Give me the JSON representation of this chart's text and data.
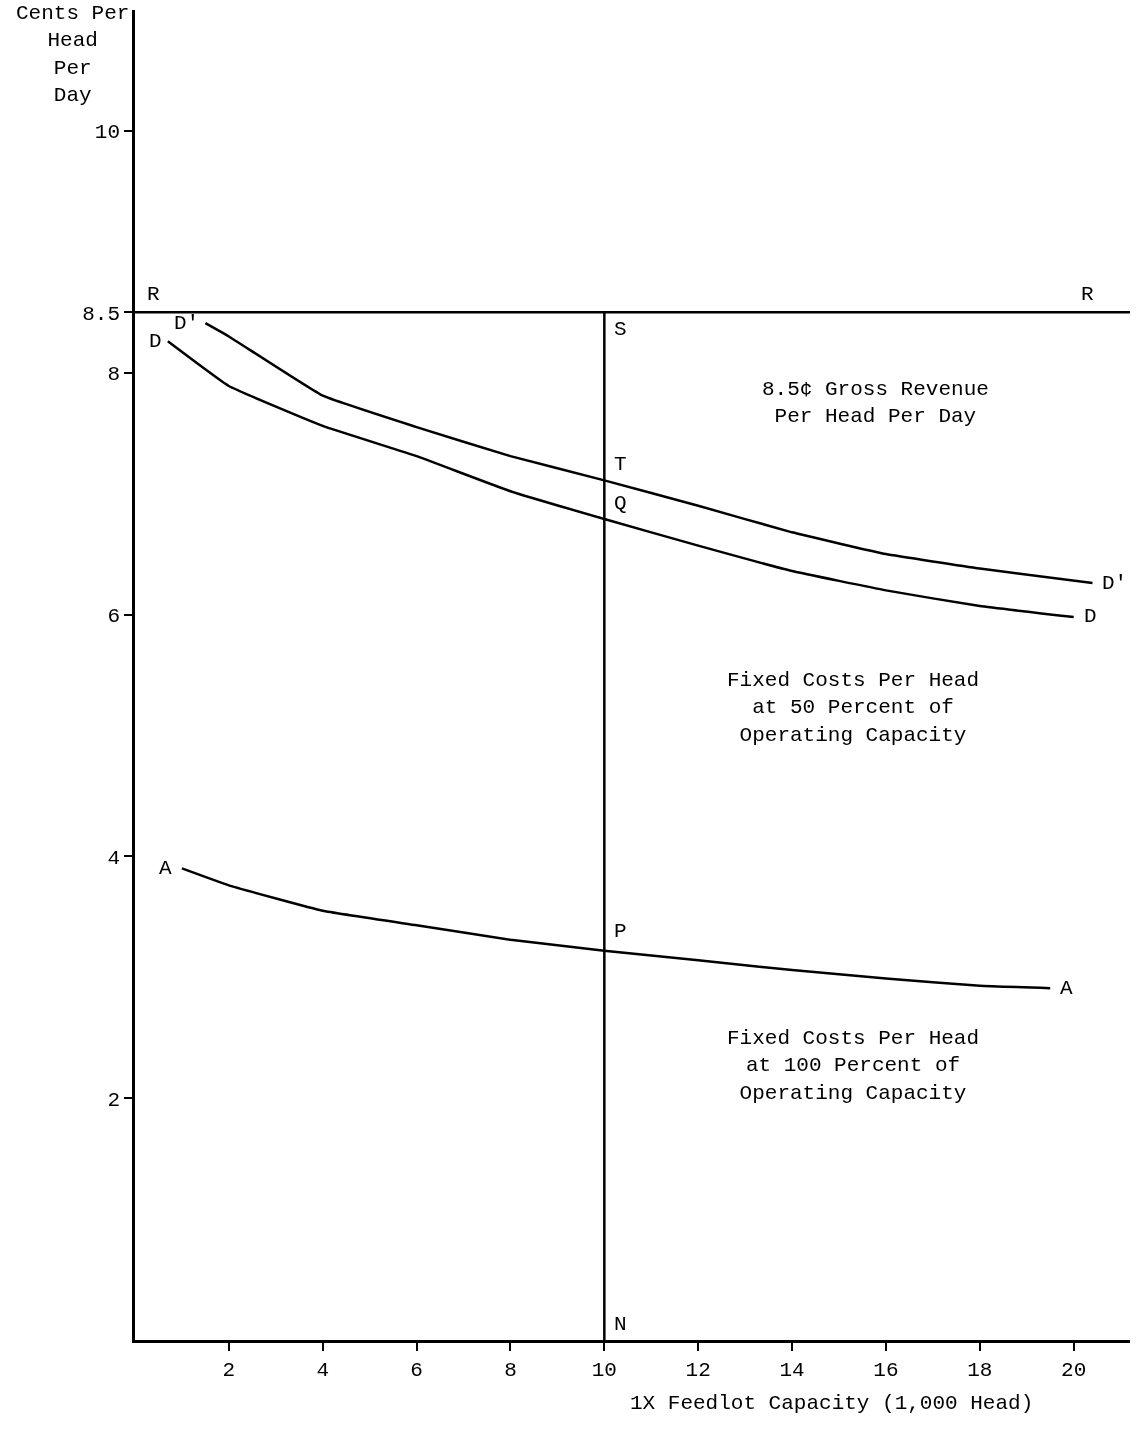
{
  "chart_data": {
    "type": "line",
    "ylabel": "Cents Per\nHead\nPer\nDay",
    "xlabel": "1X Feedlot Capacity (1,000 Head)",
    "xlim": [
      0,
      21.2
    ],
    "ylim": [
      0,
      11
    ],
    "xticks": [
      2,
      4,
      6,
      8,
      10,
      12,
      14,
      16,
      18,
      20
    ],
    "yticks": [
      2,
      4,
      6,
      8,
      8.5,
      10
    ],
    "series": [
      {
        "color": "#000000",
        "x": [
          1.5,
          2,
          4,
          6,
          8,
          10,
          12,
          14,
          16,
          18,
          20.4
        ],
        "values": [
          8.41,
          8.3,
          7.81,
          7.55,
          7.31,
          7.11,
          6.9,
          6.68,
          6.5,
          6.38,
          6.26
        ]
      },
      {
        "color": "#000000",
        "x": [
          0.7,
          2,
          4,
          6,
          8,
          10,
          12,
          14,
          16,
          18,
          20
        ],
        "values": [
          8.26,
          7.89,
          7.56,
          7.31,
          7.02,
          6.79,
          6.57,
          6.36,
          6.2,
          6.07,
          5.98
        ]
      },
      {
        "color": "#000000",
        "x": [
          1,
          2,
          4,
          6,
          8,
          10,
          12,
          14,
          16,
          18,
          19.5
        ],
        "values": [
          3.9,
          3.76,
          3.55,
          3.43,
          3.31,
          3.22,
          3.14,
          3.06,
          2.99,
          2.93,
          2.91
        ]
      },
      {
        "color": "#000000",
        "x": [
          0,
          21.2
        ],
        "values": [
          8.5,
          8.5
        ]
      },
      {
        "color": "#000000",
        "x": [
          10,
          10
        ],
        "values": [
          0,
          8.5
        ]
      }
    ],
    "annotations": [
      {
        "text": "R",
        "x": 0,
        "y": 8.5
      },
      {
        "text": "R",
        "x": 20.3,
        "y": 8.5
      },
      {
        "text": "S",
        "x": 10,
        "y": 8.5
      },
      "8.5¢ Gross Revenue\nPer Head Per Day",
      {
        "text": "D",
        "x": 0.7,
        "y": 8.26
      },
      {
        "text": "D'",
        "x": 1.5,
        "y": 8.41
      },
      {
        "text": "T",
        "x": 10,
        "y": 7.11
      },
      {
        "text": "Q",
        "x": 10,
        "y": 6.79
      },
      {
        "text": "D'",
        "x": 20.4,
        "y": 6.26
      },
      {
        "text": "D",
        "x": 20,
        "y": 5.98
      },
      "Fixed Costs Per Head\nat 50 Percent of\nOperating Capacity",
      {
        "text": "A",
        "x": 1,
        "y": 3.9
      },
      {
        "text": "P",
        "x": 10,
        "y": 3.22
      },
      {
        "text": "A",
        "x": 19.5,
        "y": 2.91
      },
      "Fixed Costs Per Head\nat 100 Percent of\nOperating Capacity",
      {
        "text": "N",
        "x": 10,
        "y": 0
      }
    ]
  }
}
